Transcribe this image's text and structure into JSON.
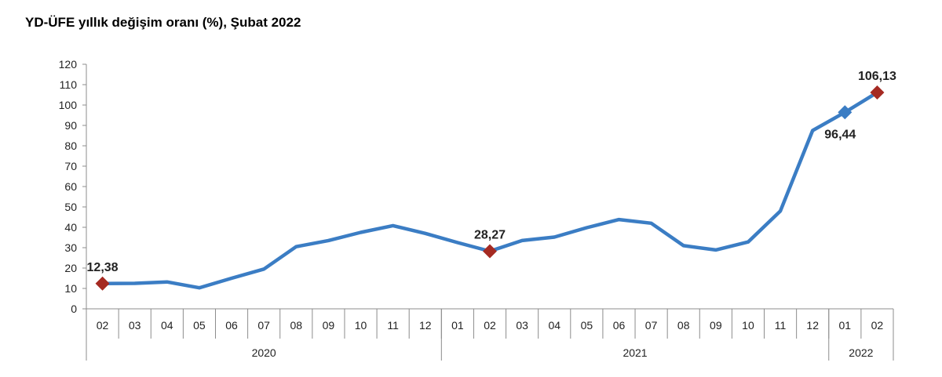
{
  "chart_data": {
    "type": "line",
    "title": "YD-ÜFE yıllık değişim oranı (%), Şubat 2022",
    "xlabel": "",
    "ylabel": "",
    "ylim": [
      0,
      120
    ],
    "yticks": [
      "0",
      "10",
      "20",
      "30",
      "40",
      "50",
      "60",
      "70",
      "80",
      "90",
      "100",
      "110",
      "120"
    ],
    "grid": false,
    "categories": [
      "02",
      "03",
      "04",
      "05",
      "06",
      "07",
      "08",
      "09",
      "10",
      "11",
      "12",
      "01",
      "02",
      "03",
      "04",
      "05",
      "06",
      "07",
      "08",
      "09",
      "10",
      "11",
      "12",
      "01",
      "02"
    ],
    "year_groups": [
      {
        "label": "2020",
        "count": 11
      },
      {
        "label": "2021",
        "count": 12
      },
      {
        "label": "2022",
        "count": 2
      }
    ],
    "series": [
      {
        "color": "#3b7dc4",
        "values": [
          12.38,
          12.5,
          13.2,
          10.3,
          15.0,
          19.5,
          30.5,
          33.5,
          37.5,
          40.8,
          37.0,
          32.5,
          28.27,
          33.5,
          35.2,
          39.8,
          43.8,
          42.0,
          31.0,
          28.9,
          32.8,
          48.0,
          87.5,
          96.44,
          106.13
        ]
      }
    ],
    "annotations": [
      {
        "index": 0,
        "label": "12,38",
        "marker": "diamond",
        "color": "#a52a22",
        "position": "above"
      },
      {
        "index": 12,
        "label": "28,27",
        "marker": "diamond",
        "color": "#a52a22",
        "position": "above"
      },
      {
        "index": 23,
        "label": "96,44",
        "marker": "diamond",
        "color": "#3b7dc4",
        "position": "below"
      },
      {
        "index": 24,
        "label": "106,13",
        "marker": "diamond",
        "color": "#a52a22",
        "position": "above"
      }
    ]
  }
}
